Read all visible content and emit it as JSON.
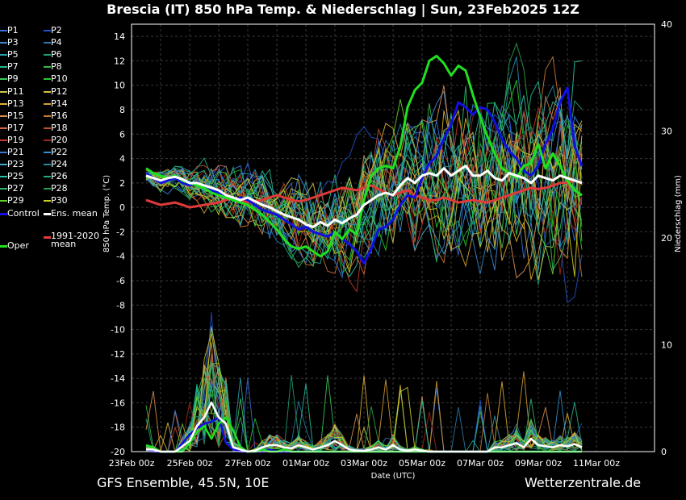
{
  "title": "Brescia  (IT)  850 hPa Temp. & Niederschlag | Sun, 23Feb2025 12Z",
  "footer_left": "GFS Ensemble, 45.5N, 10E",
  "footer_right": "Wetterzentrale.de",
  "legend": [
    {
      "label": "P1",
      "color": "#3a6fd8"
    },
    {
      "label": "P2",
      "color": "#2250c8"
    },
    {
      "label": "P3",
      "color": "#3b86d0"
    },
    {
      "label": "P4",
      "color": "#2a7aa8"
    },
    {
      "label": "P5",
      "color": "#2aa0b0"
    },
    {
      "label": "P6",
      "color": "#1fa070"
    },
    {
      "label": "P7",
      "color": "#22b890"
    },
    {
      "label": "P8",
      "color": "#38b848"
    },
    {
      "label": "P9",
      "color": "#3ac858"
    },
    {
      "label": "P10",
      "color": "#28c828"
    },
    {
      "label": "P11",
      "color": "#c8c850"
    },
    {
      "label": "P12",
      "color": "#d8c040"
    },
    {
      "label": "P13",
      "color": "#e0b030"
    },
    {
      "label": "P14",
      "color": "#d8a030"
    },
    {
      "label": "P15",
      "color": "#d89050"
    },
    {
      "label": "P16",
      "color": "#c87830"
    },
    {
      "label": "P17",
      "color": "#d06838"
    },
    {
      "label": "P18",
      "color": "#c05028"
    },
    {
      "label": "P19",
      "color": "#c83828"
    },
    {
      "label": "P20",
      "color": "#a02818"
    },
    {
      "label": "P21",
      "color": "#3a78d0"
    },
    {
      "label": "P22",
      "color": "#3090d0"
    },
    {
      "label": "P23",
      "color": "#40a8c8"
    },
    {
      "label": "P24",
      "color": "#2888a8"
    },
    {
      "label": "P25",
      "color": "#28c0a0"
    },
    {
      "label": "P26",
      "color": "#20a888"
    },
    {
      "label": "P27",
      "color": "#30b868"
    },
    {
      "label": "P28",
      "color": "#28a048"
    },
    {
      "label": "P29",
      "color": "#60d028"
    },
    {
      "label": "P30",
      "color": "#c8d020"
    },
    {
      "label": "Control",
      "color": "#1010e0"
    },
    {
      "label": "Ens. mean",
      "color": "#ffffff"
    },
    {
      "label": "Oper",
      "color": "#20e020"
    },
    {
      "label": "1991-2020 mean",
      "color": "#e03a3a"
    }
  ],
  "chart_data": {
    "type": "line",
    "x_label": "Date (UTC)",
    "y_label": "850 hPa Temp. (°C)",
    "y2_label": "Niederschlag (mm)",
    "x_ticks": [
      "23Feb 00z",
      "25Feb 00z",
      "27Feb 00z",
      "01Mar 00z",
      "03Mar 00z",
      "05Mar 00z",
      "07Mar 00z",
      "09Mar 00z",
      "11Mar 00z"
    ],
    "x_range_hours": [
      0,
      432
    ],
    "ylim": [
      -20,
      15
    ],
    "y_ticks": [
      14,
      12,
      10,
      8,
      6,
      4,
      2,
      0,
      -2,
      -4,
      -6,
      -8,
      -10,
      -12,
      -14,
      -16,
      -18,
      -20
    ],
    "y2lim": [
      0,
      40
    ],
    "y2_ticks": [
      40,
      30,
      20,
      10,
      0
    ],
    "step_hours": 6,
    "start_hour": 12,
    "temperature": {
      "ens_mean": [
        2.6,
        2.4,
        2.2,
        2.4,
        2.5,
        2.3,
        2.0,
        2.0,
        1.8,
        1.6,
        1.4,
        1.0,
        0.8,
        0.6,
        0.8,
        0.5,
        0.2,
        0.0,
        -0.3,
        -0.6,
        -0.8,
        -1.0,
        -1.4,
        -1.6,
        -1.2,
        -1.5,
        -1.0,
        -1.3,
        -0.9,
        -0.6,
        0.2,
        0.6,
        1.0,
        1.2,
        1.0,
        1.8,
        2.4,
        2.0,
        2.6,
        2.8,
        2.6,
        3.2,
        2.6,
        3.0,
        3.4,
        2.6,
        2.6,
        3.0,
        2.4,
        2.2,
        2.8,
        2.6,
        2.4,
        2.0,
        2.6,
        2.4,
        2.2,
        2.6,
        2.4,
        2.2,
        2.0
      ],
      "climate_mean": [
        0.6,
        0.4,
        0.2,
        0.3,
        0.4,
        0.2,
        0.0,
        0.1,
        0.2,
        0.3,
        0.4,
        0.6,
        0.8,
        0.6,
        0.4,
        0.5,
        0.6,
        0.8,
        1.0,
        0.8,
        0.6,
        0.5,
        0.6,
        0.8,
        1.0,
        1.2,
        1.4,
        1.6,
        1.5,
        1.4,
        1.6,
        1.8,
        1.5,
        1.2,
        1.0,
        1.2,
        1.4,
        1.0,
        0.8,
        0.6,
        0.6,
        0.8,
        0.6,
        0.4,
        0.5,
        0.6,
        0.5,
        0.4,
        0.6,
        0.8,
        1.0,
        1.2,
        1.4,
        1.6,
        1.5,
        1.6,
        1.8,
        2.0,
        2.0,
        2.2,
        2.0
      ],
      "control": [
        2.8,
        2.4,
        2.0,
        2.2,
        2.4,
        2.0,
        1.8,
        2.0,
        1.6,
        1.4,
        1.2,
        0.8,
        0.6,
        0.8,
        0.6,
        0.2,
        -0.2,
        -0.4,
        -0.6,
        -1.0,
        -1.4,
        -1.8,
        -1.6,
        -2.0,
        -2.2,
        -2.4,
        -2.0,
        -2.6,
        -3.0,
        -3.6,
        -4.6,
        -3.4,
        -1.8,
        -1.6,
        -1.0,
        0.2,
        1.0,
        0.8,
        2.4,
        3.6,
        4.2,
        5.6,
        6.8,
        8.6,
        8.2,
        7.6,
        8.2,
        8.0,
        7.0,
        5.6,
        4.6,
        4.0,
        3.0,
        2.6,
        3.4,
        5.2,
        6.4,
        8.6,
        9.8,
        5.0,
        3.4
      ],
      "oper": [
        3.2,
        2.8,
        2.6,
        2.4,
        2.6,
        2.2,
        2.0,
        1.8,
        1.6,
        1.2,
        1.0,
        0.8,
        0.6,
        0.4,
        0.2,
        -0.2,
        -0.6,
        -1.2,
        -1.8,
        -2.6,
        -3.2,
        -3.4,
        -3.2,
        -3.6,
        -4.0,
        -3.6,
        -2.0,
        -2.6,
        -1.8,
        -2.2,
        0.6,
        2.6,
        3.2,
        3.4,
        3.2,
        5.0,
        8.2,
        9.6,
        10.2,
        12.0,
        12.4,
        11.8,
        10.8,
        11.6,
        11.2,
        9.2,
        7.4,
        5.8,
        4.4,
        3.2,
        2.8,
        2.4,
        3.4,
        3.6,
        5.2,
        3.2,
        4.4,
        3.4,
        2.2,
        1.4,
        1.0
      ]
    },
    "precipitation": {
      "ens_mean": [
        0.2,
        0.2,
        0.0,
        0.0,
        0.0,
        0.5,
        1.0,
        2.4,
        3.2,
        4.6,
        3.2,
        2.6,
        0.4,
        0.2,
        0.0,
        0.1,
        0.4,
        0.6,
        0.6,
        0.4,
        0.3,
        0.6,
        0.4,
        0.2,
        0.4,
        0.6,
        1.0,
        0.6,
        0.2,
        0.1,
        0.1,
        0.2,
        0.4,
        0.2,
        0.6,
        0.2,
        0.1,
        0.2,
        0.1,
        0.0,
        0.0,
        0.0,
        0.0,
        0.0,
        0.0,
        0.0,
        0.0,
        0.0,
        0.4,
        0.4,
        0.6,
        0.8,
        0.4,
        1.2,
        0.6,
        0.5,
        0.4,
        0.6,
        0.5,
        0.7,
        0.4
      ],
      "control": [
        0.2,
        0.0,
        0.0,
        0.0,
        0.0,
        0.8,
        1.6,
        2.2,
        2.6,
        2.8,
        3.2,
        0.8,
        0.2,
        0.0,
        0.0,
        0.0,
        0.0,
        0.2,
        0.0,
        0.0,
        0.0,
        0.0,
        0.0,
        0.0,
        0.0,
        0.0,
        0.0,
        0.0,
        0.0,
        0.0,
        0.2,
        0.0,
        0.0,
        0.0,
        0.0,
        0.0,
        0.0,
        0.0,
        0.0,
        0.0,
        0.0,
        0.0,
        0.0,
        0.0,
        0.0,
        0.0,
        0.0,
        0.0,
        0.0,
        0.0,
        0.0,
        0.0,
        0.0,
        0.0,
        0.0,
        0.0,
        0.0,
        0.0,
        0.0,
        0.0,
        0.0
      ],
      "oper": [
        0.6,
        0.4,
        0.0,
        0.0,
        0.0,
        0.0,
        0.8,
        1.8,
        2.4,
        1.2,
        2.6,
        3.2,
        2.0,
        0.4,
        0.0,
        0.0,
        0.2,
        0.0,
        0.0,
        0.2,
        0.0,
        0.0,
        0.0,
        0.0,
        0.0,
        0.0,
        0.0,
        0.0,
        0.0,
        0.0,
        0.0,
        0.0,
        0.0,
        0.0,
        0.0,
        0.0,
        0.0,
        0.0,
        0.0,
        0.0,
        0.0,
        0.0,
        0.0,
        0.0,
        0.0,
        0.0,
        0.0,
        0.0,
        0.0,
        0.0,
        0.0,
        0.0,
        0.0,
        0.0,
        0.0,
        0.0,
        0.0,
        0.0,
        0.0,
        0.0,
        0.0
      ]
    }
  }
}
